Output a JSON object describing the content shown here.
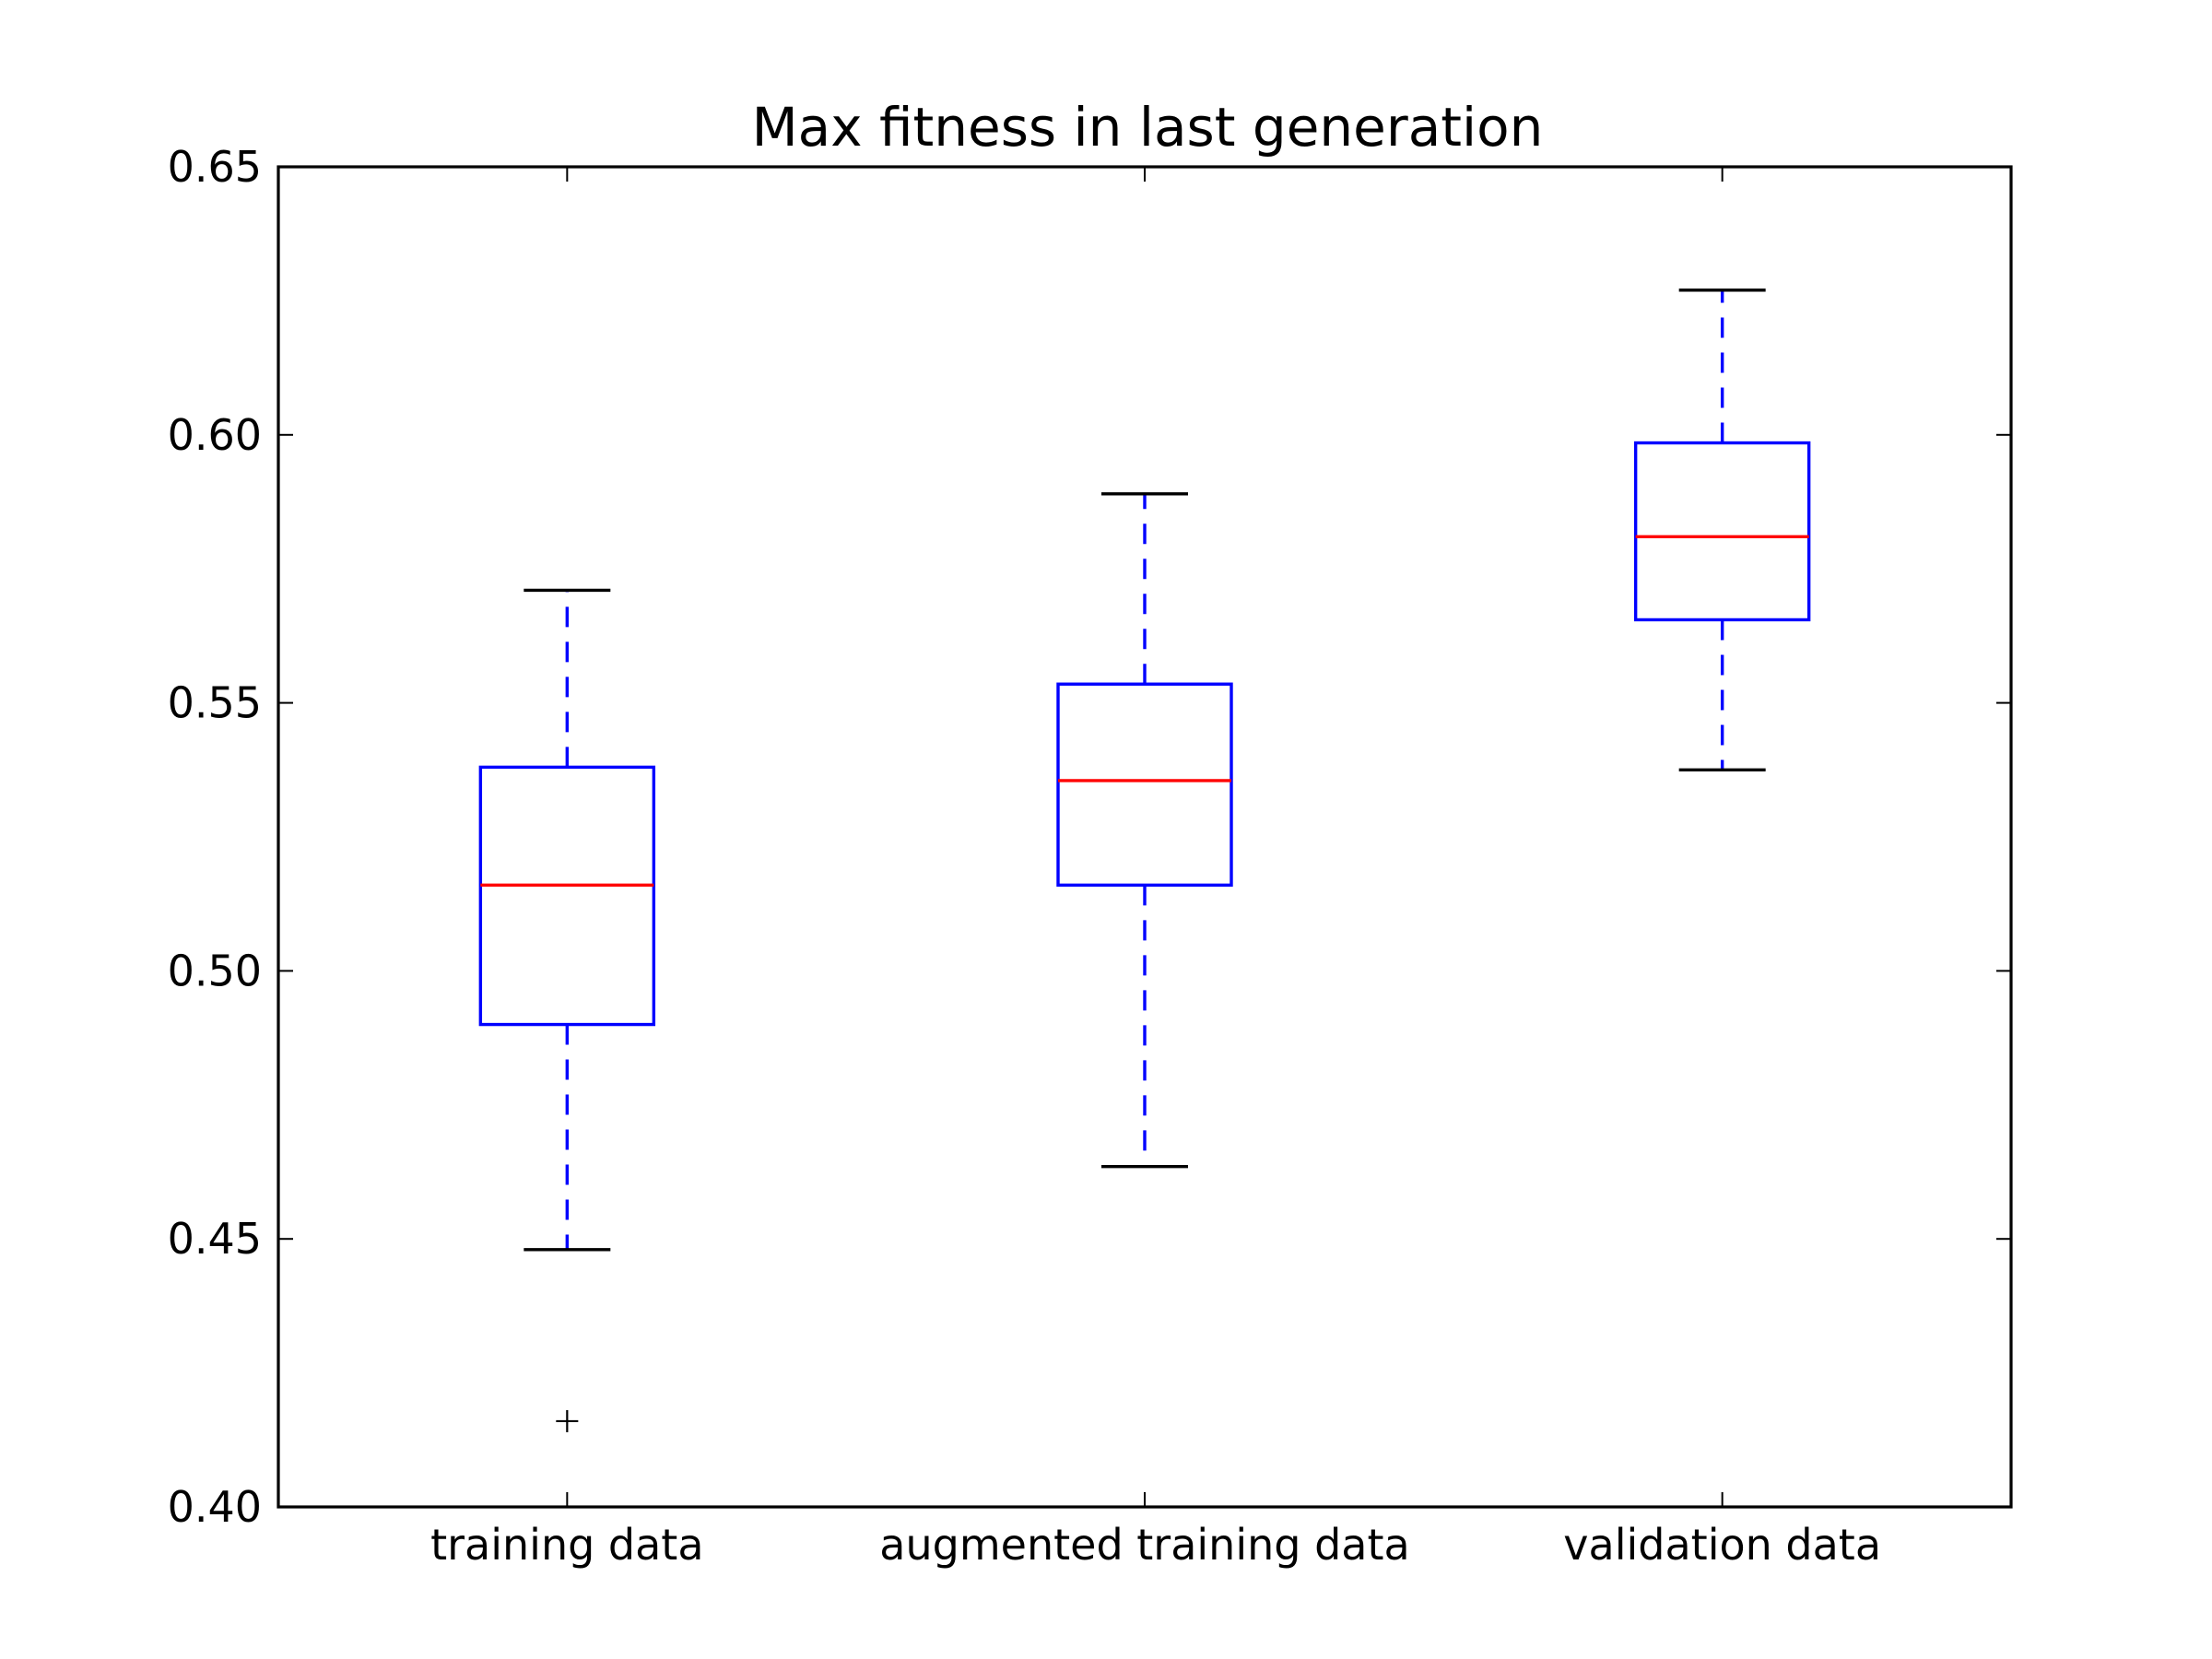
{
  "chart_data": {
    "type": "boxplot",
    "title": "Max fitness in last generation",
    "xlabel": "",
    "ylabel": "",
    "categories": [
      "training data",
      "augmented training data",
      "validation data"
    ],
    "ylim": [
      0.4,
      0.65
    ],
    "yticks": [
      0.4,
      0.45,
      0.5,
      0.55,
      0.6,
      0.65
    ],
    "ytick_labels": [
      "0.40",
      "0.45",
      "0.50",
      "0.55",
      "0.60",
      "0.65"
    ],
    "grid": false,
    "boxes": [
      {
        "category": "training data",
        "whisker_low": 0.448,
        "q1": 0.49,
        "median": 0.516,
        "q3": 0.538,
        "whisker_high": 0.571,
        "outliers": [
          0.416
        ]
      },
      {
        "category": "augmented training data",
        "whisker_low": 0.4635,
        "q1": 0.516,
        "median": 0.5355,
        "q3": 0.5535,
        "whisker_high": 0.589,
        "outliers": []
      },
      {
        "category": "validation data",
        "whisker_low": 0.5375,
        "q1": 0.5655,
        "median": 0.581,
        "q3": 0.5985,
        "whisker_high": 0.627,
        "outliers": []
      }
    ],
    "colors": {
      "box": "#0000ff",
      "whisker": "#0000ff",
      "median": "#ff0000",
      "cap": "#000000",
      "outlier": "#000000",
      "axes": "#000000"
    }
  }
}
